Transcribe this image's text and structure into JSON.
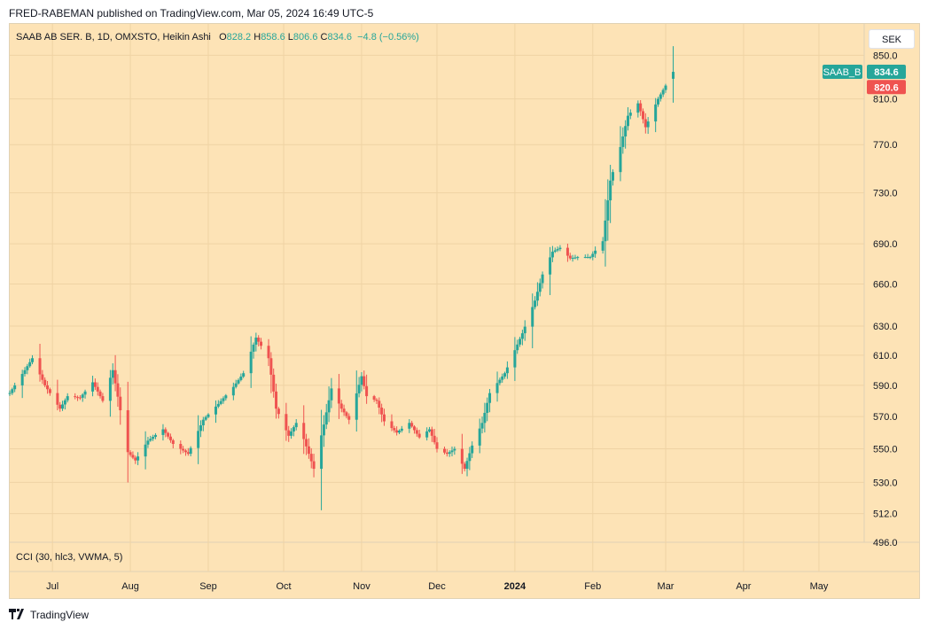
{
  "publisher_line": "FRED-RABEMAN published on TradingView.com, Mar 05, 2024 16:49 UTC-5",
  "legend": {
    "symbol": "SAAB AB SER. B, 1D, OMXSTO, Heikin Ashi",
    "o_label": "O",
    "o_value": "828.2",
    "h_label": "H",
    "h_value": "858.6",
    "l_label": "L",
    "l_value": "806.6",
    "c_label": "C",
    "c_value": "834.6",
    "change": "−4.8 (−0.56%)"
  },
  "currency": "SEK",
  "indicator_label": "CCI (30, hlc3, VWMA, 5)",
  "price_tags": [
    {
      "label": "SAAB_B",
      "value": "834.6",
      "color": "#26a69a"
    },
    {
      "label": "",
      "value": "820.6",
      "color": "#ef5350"
    }
  ],
  "footer": {
    "logo_text": "TradingView"
  },
  "colors": {
    "up": "#26a69a",
    "down": "#ef5350",
    "background": "#fde3b6",
    "grid": "#efd3a4"
  },
  "chart_data": {
    "type": "candlestick",
    "subtype": "heikin-ashi",
    "y_scale": "log",
    "yticks": [
      496.0,
      512.0,
      530.0,
      550.0,
      570.0,
      590.0,
      610.0,
      630.0,
      660.0,
      690.0,
      730.0,
      770.0,
      810.0,
      850.0
    ],
    "ytick_labels": [
      "496.0",
      "512.0",
      "530.0",
      "550.0",
      "570.0",
      "590.0",
      "610.0",
      "630.0",
      "660.0",
      "690.0",
      "730.0",
      "770.0",
      "810.0",
      "850.0"
    ],
    "ylim": [
      496,
      880
    ],
    "x_labels": [
      "Jul",
      "Aug",
      "Sep",
      "Oct",
      "Nov",
      "Dec",
      "2024",
      "Feb",
      "Mar",
      "Apr",
      "May"
    ],
    "x_range": [
      "2023-06-14",
      "2024-05-19"
    ],
    "label_dates": [
      "2023-07-01",
      "2023-08-01",
      "2023-09-01",
      "2023-10-01",
      "2023-11-01",
      "2023-12-01",
      "2024-01-01",
      "2024-02-01",
      "2024-03-01",
      "2024-04-01",
      "2024-05-01"
    ],
    "close_path": [
      [
        "2023-06-14",
        585
      ],
      [
        "2023-06-20",
        600
      ],
      [
        "2023-06-23",
        608
      ],
      [
        "2023-06-28",
        590
      ],
      [
        "2023-07-04",
        575
      ],
      [
        "2023-07-07",
        583
      ],
      [
        "2023-07-12",
        582
      ],
      [
        "2023-07-17",
        592
      ],
      [
        "2023-07-21",
        580
      ],
      [
        "2023-07-25",
        600
      ],
      [
        "2023-07-31",
        548
      ],
      [
        "2023-08-03",
        543
      ],
      [
        "2023-08-08",
        555
      ],
      [
        "2023-08-14",
        562
      ],
      [
        "2023-08-18",
        553
      ],
      [
        "2023-08-24",
        547
      ],
      [
        "2023-08-30",
        568
      ],
      [
        "2023-09-05",
        578
      ],
      [
        "2023-09-11",
        589
      ],
      [
        "2023-09-15",
        598
      ],
      [
        "2023-09-20",
        622
      ],
      [
        "2023-09-25",
        608
      ],
      [
        "2023-09-28",
        575
      ],
      [
        "2023-10-03",
        558
      ],
      [
        "2023-10-06",
        566
      ],
      [
        "2023-10-09",
        556
      ],
      [
        "2023-10-13",
        538
      ],
      [
        "2023-10-17",
        565
      ],
      [
        "2023-10-20",
        588
      ],
      [
        "2023-10-24",
        575
      ],
      [
        "2023-10-27",
        568
      ],
      [
        "2023-11-01",
        596
      ],
      [
        "2023-11-03",
        583
      ],
      [
        "2023-11-07",
        580
      ],
      [
        "2023-11-10",
        567
      ],
      [
        "2023-11-15",
        560
      ],
      [
        "2023-11-20",
        566
      ],
      [
        "2023-11-24",
        557
      ],
      [
        "2023-11-28",
        562
      ],
      [
        "2023-12-01",
        550
      ],
      [
        "2023-12-05",
        547
      ],
      [
        "2023-12-08",
        550
      ],
      [
        "2023-12-12",
        538
      ],
      [
        "2023-12-15",
        552
      ],
      [
        "2023-12-19",
        566
      ],
      [
        "2023-12-22",
        585
      ],
      [
        "2023-12-28",
        598
      ],
      [
        "2024-01-04",
        625
      ],
      [
        "2024-01-09",
        648
      ],
      [
        "2024-01-12",
        667
      ],
      [
        "2024-01-16",
        684
      ],
      [
        "2024-01-19",
        687
      ],
      [
        "2024-01-23",
        679
      ],
      [
        "2024-01-26",
        680
      ],
      [
        "2024-01-31",
        680
      ],
      [
        "2024-02-05",
        692
      ],
      [
        "2024-02-08",
        740
      ],
      [
        "2024-02-12",
        768
      ],
      [
        "2024-02-15",
        795
      ],
      [
        "2024-02-19",
        806
      ],
      [
        "2024-02-22",
        785
      ],
      [
        "2024-02-27",
        810
      ],
      [
        "2024-03-01",
        822
      ],
      [
        "2024-03-04",
        835
      ]
    ],
    "last_candle": {
      "date": "2024-03-04",
      "open": 828.2,
      "high": 858.6,
      "low": 806.6,
      "close": 834.6
    },
    "indicator_pane": {
      "name": "CCI (30, hlc3, VWMA, 5)"
    },
    "grid": true,
    "legend_position": "top-left"
  }
}
